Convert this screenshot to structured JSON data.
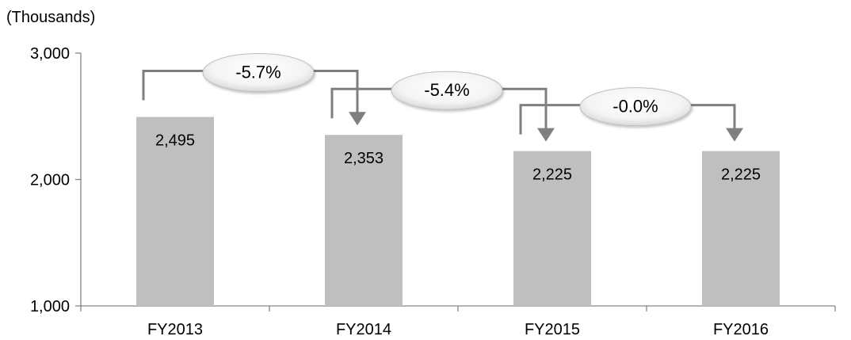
{
  "chart_data": {
    "type": "bar",
    "unit_label": "(Thousands)",
    "categories": [
      "FY2013",
      "FY2014",
      "FY2015",
      "FY2016"
    ],
    "values": [
      2495,
      2353,
      2225,
      2225
    ],
    "value_labels": [
      "2,495",
      "2,353",
      "2,225",
      "2,225"
    ],
    "ylim": [
      1000,
      3000
    ],
    "yticks": [
      1000,
      2000,
      3000
    ],
    "ytick_labels": [
      "1,000",
      "2,000",
      "3,000"
    ],
    "grid": false,
    "legend": "none",
    "bar_color": "#bfbfbf",
    "arrow_color": "#7f7f7f",
    "annotations": [
      {
        "from": "FY2013",
        "to": "FY2014",
        "label": "-5.7%"
      },
      {
        "from": "FY2014",
        "to": "FY2015",
        "label": "-5.4%"
      },
      {
        "from": "FY2015",
        "to": "FY2016",
        "label": "-0.0%"
      }
    ]
  }
}
